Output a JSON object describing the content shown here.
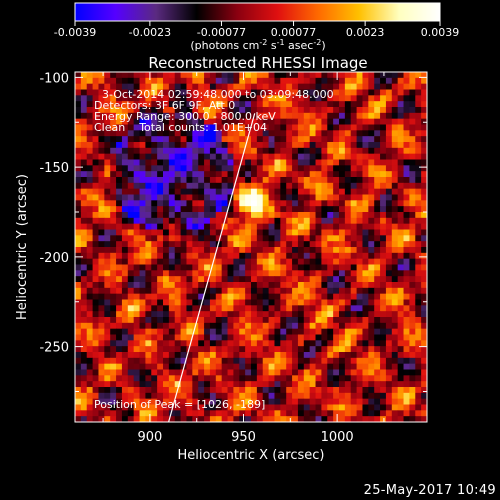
{
  "colorbar": {
    "ticks": [
      "-0.0039",
      "-0.0023",
      "-0.00077",
      "0.00077",
      "0.0023",
      "0.0039"
    ],
    "tick_values": [
      -0.0039,
      -0.0023,
      -0.00077,
      0.00077,
      0.0023,
      0.0039
    ],
    "unit_base": "(photons cm",
    "unit_exp1": "-2",
    "unit_mid1": " s",
    "unit_exp2": "-1",
    "unit_mid2": " asec",
    "unit_exp3": "-2",
    "unit_end": ")",
    "colors": [
      "#0000ff",
      "#5500ff",
      "#5a2a80",
      "#000000",
      "#8a0010",
      "#e01010",
      "#ff6a00",
      "#ffc000",
      "#ffffc0",
      "#ffffff"
    ]
  },
  "chart_data": {
    "type": "heatmap",
    "title": "Reconstructed RHESSI Image",
    "xlabel": "Heliocentric X (arcsec)",
    "ylabel": "Heliocentric Y (arcsec)",
    "xlim": [
      860,
      1048
    ],
    "ylim": [
      -292,
      -97
    ],
    "xticks": [
      900,
      950,
      1000
    ],
    "yticks": [
      -100,
      -150,
      -200,
      -250
    ],
    "zlim": [
      -0.0039,
      0.0039
    ],
    "limb_line": [
      [
        910,
        -292
      ],
      [
        956,
        -120
      ]
    ],
    "peak": [
      1026,
      -189
    ],
    "annotations": [
      "3-Oct-2014 02:59:48.000 to 03:09:48.000",
      "Detectors: 3F 6F 9F, Att 0",
      "Energy Range: 300.0 - 800.0 keV",
      "Clean    Total counts: 1.01E+04",
      "Position of Peak = [1026, -189]"
    ]
  },
  "footer": {
    "timestamp": "25-May-2017 10:49"
  }
}
